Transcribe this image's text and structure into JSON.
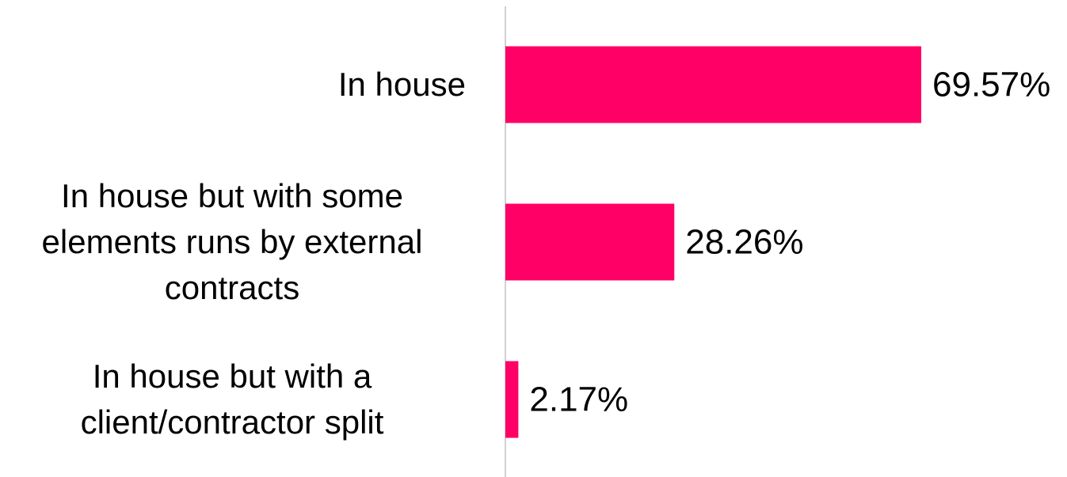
{
  "chart_data": {
    "type": "bar",
    "orientation": "horizontal",
    "categories": [
      "In house",
      "In house but with some elements runs by external contracts",
      "In house but with a client/contractor split"
    ],
    "values": [
      69.57,
      28.26,
      2.17
    ],
    "value_labels": [
      "69.57%",
      "28.26%",
      "2.17%"
    ],
    "color": "#ff0066"
  }
}
